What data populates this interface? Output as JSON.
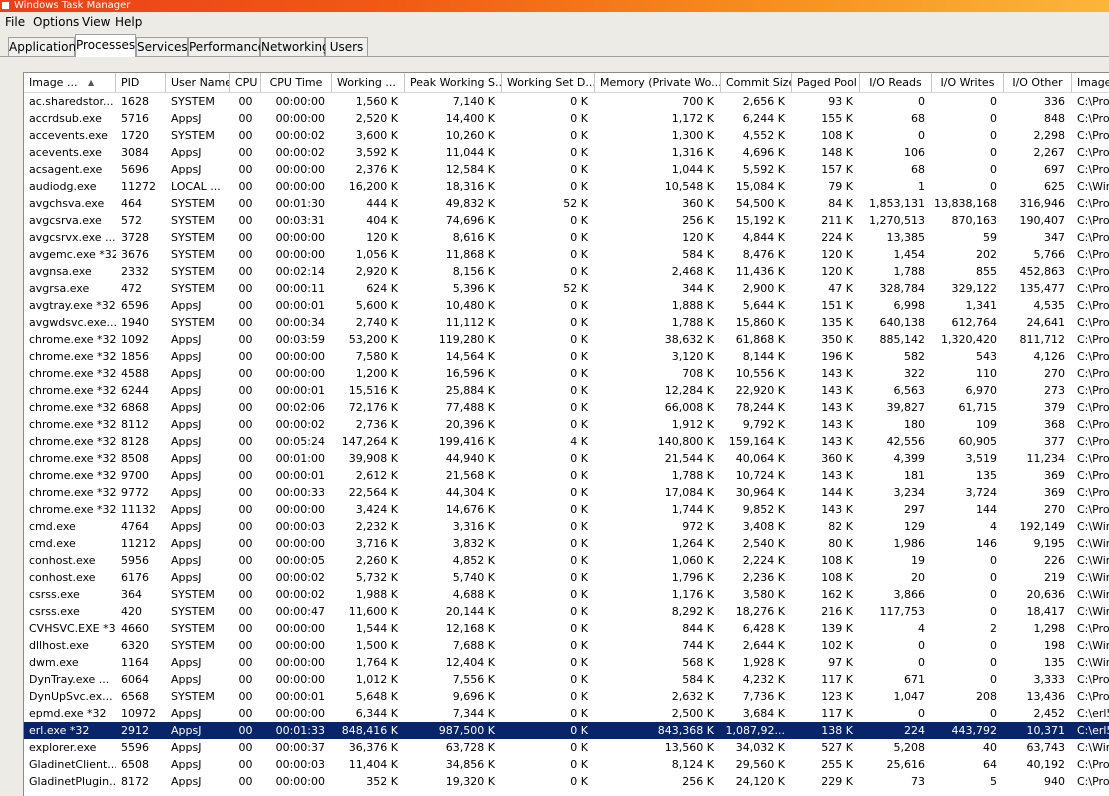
{
  "window": {
    "title": "Windows Task Manager"
  },
  "menu": [
    "File",
    "Options",
    "View",
    "Help"
  ],
  "tabs": [
    {
      "label": "Applications",
      "active": false
    },
    {
      "label": "Processes",
      "active": true
    },
    {
      "label": "Services",
      "active": false
    },
    {
      "label": "Performance",
      "active": false
    },
    {
      "label": "Networking",
      "active": false
    },
    {
      "label": "Users",
      "active": false
    }
  ],
  "columns": [
    "Image ...",
    "PID",
    "User Name",
    "CPU",
    "CPU Time",
    "Working ...",
    "Peak Working S...",
    "Working Set D...",
    "Memory (Private Wo...",
    "Commit Size",
    "Paged Pool",
    "I/O Reads",
    "I/O Writes",
    "I/O Other",
    "Image"
  ],
  "sort": {
    "column": "Image ...",
    "direction": "ascending"
  },
  "selected_row": "erl.exe *32",
  "rows": [
    [
      "ac.sharedstor...",
      "1628",
      "SYSTEM",
      "00",
      "00:00:00",
      "1,560 K",
      "7,140 K",
      "0 K",
      "700 K",
      "2,656 K",
      "93 K",
      "0",
      "0",
      "336",
      "C:\\Pro"
    ],
    [
      "accrdsub.exe",
      "5716",
      "AppsJ",
      "00",
      "00:00:00",
      "2,520 K",
      "14,400 K",
      "0 K",
      "1,172 K",
      "6,244 K",
      "155 K",
      "68",
      "0",
      "848",
      "C:\\Pro"
    ],
    [
      "accevents.exe",
      "1720",
      "SYSTEM",
      "00",
      "00:00:02",
      "3,600 K",
      "10,260 K",
      "0 K",
      "1,300 K",
      "4,552 K",
      "108 K",
      "0",
      "0",
      "2,298",
      "C:\\Pro"
    ],
    [
      "acevents.exe",
      "3084",
      "AppsJ",
      "00",
      "00:00:02",
      "3,592 K",
      "11,044 K",
      "0 K",
      "1,316 K",
      "4,696 K",
      "148 K",
      "106",
      "0",
      "2,267",
      "C:\\Pro"
    ],
    [
      "acsagent.exe",
      "5696",
      "AppsJ",
      "00",
      "00:00:00",
      "2,376 K",
      "12,584 K",
      "0 K",
      "1,044 K",
      "5,592 K",
      "157 K",
      "68",
      "0",
      "697",
      "C:\\Pro"
    ],
    [
      "audiodg.exe",
      "11272",
      "LOCAL ...",
      "00",
      "00:00:00",
      "16,200 K",
      "18,316 K",
      "0 K",
      "10,548 K",
      "15,084 K",
      "79 K",
      "1",
      "0",
      "625",
      "C:\\Win"
    ],
    [
      "avgchsva.exe",
      "464",
      "SYSTEM",
      "00",
      "00:01:30",
      "444 K",
      "49,832 K",
      "52 K",
      "360 K",
      "54,500 K",
      "84 K",
      "1,853,131",
      "13,838,168",
      "316,946",
      "C:\\Pro"
    ],
    [
      "avgcsrva.exe",
      "572",
      "SYSTEM",
      "00",
      "00:03:31",
      "404 K",
      "74,696 K",
      "0 K",
      "256 K",
      "15,192 K",
      "211 K",
      "1,270,513",
      "870,163",
      "190,407",
      "C:\\Pro"
    ],
    [
      "avgcsrvx.exe ...",
      "3728",
      "SYSTEM",
      "00",
      "00:00:00",
      "120 K",
      "8,616 K",
      "0 K",
      "120 K",
      "4,844 K",
      "224 K",
      "13,385",
      "59",
      "347",
      "C:\\Pro"
    ],
    [
      "avgemc.exe *32",
      "3676",
      "SYSTEM",
      "00",
      "00:00:00",
      "1,056 K",
      "11,868 K",
      "0 K",
      "584 K",
      "8,476 K",
      "120 K",
      "1,454",
      "202",
      "5,766",
      "C:\\Pro"
    ],
    [
      "avgnsa.exe",
      "2332",
      "SYSTEM",
      "00",
      "00:02:14",
      "2,920 K",
      "8,156 K",
      "0 K",
      "2,468 K",
      "11,436 K",
      "120 K",
      "1,788",
      "855",
      "452,863",
      "C:\\Pro"
    ],
    [
      "avgrsa.exe",
      "472",
      "SYSTEM",
      "00",
      "00:00:11",
      "624 K",
      "5,396 K",
      "52 K",
      "344 K",
      "2,900 K",
      "47 K",
      "328,784",
      "329,122",
      "135,477",
      "C:\\Pro"
    ],
    [
      "avgtray.exe *32",
      "6596",
      "AppsJ",
      "00",
      "00:00:01",
      "5,600 K",
      "10,480 K",
      "0 K",
      "1,888 K",
      "5,644 K",
      "151 K",
      "6,998",
      "1,341",
      "4,535",
      "C:\\Pro"
    ],
    [
      "avgwdsvc.exe...",
      "1940",
      "SYSTEM",
      "00",
      "00:00:34",
      "2,740 K",
      "11,112 K",
      "0 K",
      "1,788 K",
      "15,860 K",
      "135 K",
      "640,138",
      "612,764",
      "24,641",
      "C:\\Pro"
    ],
    [
      "chrome.exe *32",
      "1092",
      "AppsJ",
      "00",
      "00:03:59",
      "53,200 K",
      "119,280 K",
      "0 K",
      "38,632 K",
      "61,868 K",
      "350 K",
      "885,142",
      "1,320,420",
      "811,712",
      "C:\\Pro"
    ],
    [
      "chrome.exe *32",
      "1856",
      "AppsJ",
      "00",
      "00:00:00",
      "7,580 K",
      "14,564 K",
      "0 K",
      "3,120 K",
      "8,144 K",
      "196 K",
      "582",
      "543",
      "4,126",
      "C:\\Pro"
    ],
    [
      "chrome.exe *32",
      "4588",
      "AppsJ",
      "00",
      "00:00:00",
      "1,200 K",
      "16,596 K",
      "0 K",
      "708 K",
      "10,556 K",
      "143 K",
      "322",
      "110",
      "270",
      "C:\\Pro"
    ],
    [
      "chrome.exe *32",
      "6244",
      "AppsJ",
      "00",
      "00:00:01",
      "15,516 K",
      "25,884 K",
      "0 K",
      "12,284 K",
      "22,920 K",
      "143 K",
      "6,563",
      "6,970",
      "273",
      "C:\\Pro"
    ],
    [
      "chrome.exe *32",
      "6868",
      "AppsJ",
      "00",
      "00:02:06",
      "72,176 K",
      "77,488 K",
      "0 K",
      "66,008 K",
      "78,244 K",
      "143 K",
      "39,827",
      "61,715",
      "379",
      "C:\\Pro"
    ],
    [
      "chrome.exe *32",
      "8112",
      "AppsJ",
      "00",
      "00:00:02",
      "2,736 K",
      "20,396 K",
      "0 K",
      "1,912 K",
      "9,792 K",
      "143 K",
      "180",
      "109",
      "368",
      "C:\\Pro"
    ],
    [
      "chrome.exe *32",
      "8128",
      "AppsJ",
      "00",
      "00:05:24",
      "147,264 K",
      "199,416 K",
      "4 K",
      "140,800 K",
      "159,164 K",
      "143 K",
      "42,556",
      "60,905",
      "377",
      "C:\\Pro"
    ],
    [
      "chrome.exe *32",
      "8508",
      "AppsJ",
      "00",
      "00:01:00",
      "39,908 K",
      "44,940 K",
      "0 K",
      "21,544 K",
      "40,064 K",
      "360 K",
      "4,399",
      "3,519",
      "11,234",
      "C:\\Pro"
    ],
    [
      "chrome.exe *32",
      "9700",
      "AppsJ",
      "00",
      "00:00:01",
      "2,612 K",
      "21,568 K",
      "0 K",
      "1,788 K",
      "10,724 K",
      "143 K",
      "181",
      "135",
      "369",
      "C:\\Pro"
    ],
    [
      "chrome.exe *32",
      "9772",
      "AppsJ",
      "00",
      "00:00:33",
      "22,564 K",
      "44,304 K",
      "0 K",
      "17,084 K",
      "30,964 K",
      "144 K",
      "3,234",
      "3,724",
      "369",
      "C:\\Pro"
    ],
    [
      "chrome.exe *32",
      "11132",
      "AppsJ",
      "00",
      "00:00:00",
      "3,424 K",
      "14,676 K",
      "0 K",
      "1,744 K",
      "9,852 K",
      "143 K",
      "297",
      "144",
      "270",
      "C:\\Pro"
    ],
    [
      "cmd.exe",
      "4764",
      "AppsJ",
      "00",
      "00:00:03",
      "2,232 K",
      "3,316 K",
      "0 K",
      "972 K",
      "3,408 K",
      "82 K",
      "129",
      "4",
      "192,149",
      "C:\\Win"
    ],
    [
      "cmd.exe",
      "11212",
      "AppsJ",
      "00",
      "00:00:00",
      "3,716 K",
      "3,832 K",
      "0 K",
      "1,264 K",
      "2,540 K",
      "80 K",
      "1,986",
      "146",
      "9,195",
      "C:\\Win"
    ],
    [
      "conhost.exe",
      "5956",
      "AppsJ",
      "00",
      "00:00:05",
      "2,260 K",
      "4,852 K",
      "0 K",
      "1,060 K",
      "2,224 K",
      "108 K",
      "19",
      "0",
      "226",
      "C:\\Win"
    ],
    [
      "conhost.exe",
      "6176",
      "AppsJ",
      "00",
      "00:00:02",
      "5,732 K",
      "5,740 K",
      "0 K",
      "1,796 K",
      "2,236 K",
      "108 K",
      "20",
      "0",
      "219",
      "C:\\Win"
    ],
    [
      "csrss.exe",
      "364",
      "SYSTEM",
      "00",
      "00:00:02",
      "1,988 K",
      "4,688 K",
      "0 K",
      "1,176 K",
      "3,580 K",
      "162 K",
      "3,866",
      "0",
      "20,636",
      "C:\\Win"
    ],
    [
      "csrss.exe",
      "420",
      "SYSTEM",
      "00",
      "00:00:47",
      "11,600 K",
      "20,144 K",
      "0 K",
      "8,292 K",
      "18,276 K",
      "216 K",
      "117,753",
      "0",
      "18,417",
      "C:\\Win"
    ],
    [
      "CVHSVC.EXE *32",
      "4660",
      "SYSTEM",
      "00",
      "00:00:00",
      "1,544 K",
      "12,168 K",
      "0 K",
      "844 K",
      "6,428 K",
      "139 K",
      "4",
      "2",
      "1,298",
      "C:\\Pro"
    ],
    [
      "dllhost.exe",
      "6320",
      "SYSTEM",
      "00",
      "00:00:00",
      "1,500 K",
      "7,688 K",
      "0 K",
      "744 K",
      "2,644 K",
      "102 K",
      "0",
      "0",
      "198",
      "C:\\Win"
    ],
    [
      "dwm.exe",
      "1164",
      "AppsJ",
      "00",
      "00:00:00",
      "1,764 K",
      "12,404 K",
      "0 K",
      "568 K",
      "1,928 K",
      "97 K",
      "0",
      "0",
      "135",
      "C:\\Win"
    ],
    [
      "DynTray.exe ...",
      "6064",
      "AppsJ",
      "00",
      "00:00:00",
      "1,012 K",
      "7,556 K",
      "0 K",
      "584 K",
      "4,232 K",
      "117 K",
      "671",
      "0",
      "3,333",
      "C:\\Pro"
    ],
    [
      "DynUpSvc.ex...",
      "6568",
      "SYSTEM",
      "00",
      "00:00:01",
      "5,648 K",
      "9,696 K",
      "0 K",
      "2,632 K",
      "7,736 K",
      "123 K",
      "1,047",
      "208",
      "13,436",
      "C:\\Pro"
    ],
    [
      "epmd.exe *32",
      "10972",
      "AppsJ",
      "00",
      "00:00:00",
      "6,344 K",
      "7,344 K",
      "0 K",
      "2,500 K",
      "3,684 K",
      "117 K",
      "0",
      "0",
      "2,452",
      "C:\\erl5"
    ],
    [
      "erl.exe *32",
      "2912",
      "AppsJ",
      "00",
      "00:01:33",
      "848,416 K",
      "987,500 K",
      "0 K",
      "843,368 K",
      "1,087,92...",
      "138 K",
      "224",
      "443,792",
      "10,371",
      "C:\\erl5"
    ],
    [
      "explorer.exe",
      "5596",
      "AppsJ",
      "00",
      "00:00:37",
      "36,376 K",
      "63,728 K",
      "0 K",
      "13,560 K",
      "34,032 K",
      "527 K",
      "5,208",
      "40",
      "63,743",
      "C:\\Win"
    ],
    [
      "GladinetClient....",
      "6508",
      "AppsJ",
      "00",
      "00:00:03",
      "11,404 K",
      "34,856 K",
      "0 K",
      "8,124 K",
      "29,560 K",
      "255 K",
      "25,616",
      "64",
      "40,192",
      "C:\\Pro"
    ],
    [
      "GladinetPlugin...",
      "8172",
      "AppsJ",
      "00",
      "00:00:00",
      "352 K",
      "19,320 K",
      "0 K",
      "256 K",
      "24,120 K",
      "229 K",
      "73",
      "5",
      "940",
      "C:\\Pro"
    ]
  ]
}
